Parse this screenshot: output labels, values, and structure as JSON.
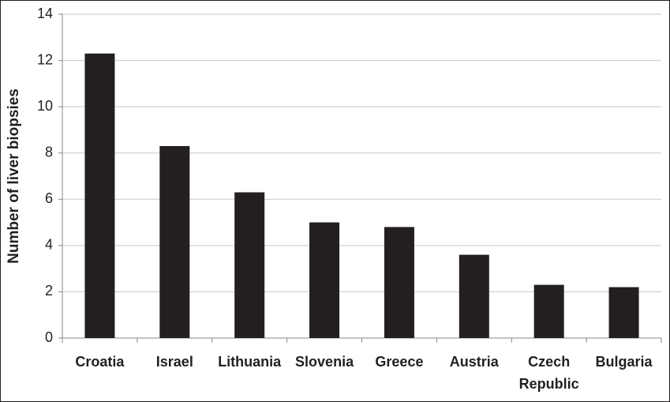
{
  "chart_data": {
    "type": "bar",
    "y_label": "Number of liver biopsies",
    "categories": [
      "Croatia",
      "Israel",
      "Lithuania",
      "Slovenia",
      "Greece",
      "Austria",
      "Czech Republic",
      "Bulgaria"
    ],
    "values": [
      12.3,
      8.3,
      6.3,
      5.0,
      4.8,
      3.6,
      2.3,
      2.2
    ],
    "color": "#231f20",
    "ylim": [
      0,
      14
    ],
    "yticks": [
      0,
      2,
      4,
      6,
      8,
      10,
      12,
      14
    ],
    "grid": true
  }
}
